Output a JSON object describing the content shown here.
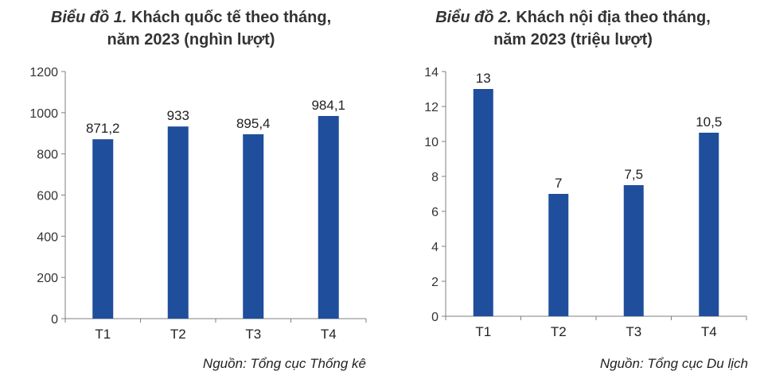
{
  "charts": [
    {
      "title_lead": "Biểu đồ 1.",
      "title_rest": " Khách quốc tế theo tháng,",
      "title_line2": "năm 2023 (nghìn lượt)",
      "source": "Nguồn: Tổng cục Thống kê"
    },
    {
      "title_lead": "Biểu đồ 2.",
      "title_rest": " Khách nội địa theo tháng,",
      "title_line2": "năm 2023 (triệu lượt)",
      "source": "Nguồn: Tổng cục Du lịch"
    }
  ],
  "colors": {
    "bar": "#1f4e9c",
    "axis": "#7f7f7f",
    "text": "#222222"
  },
  "chart_data": [
    {
      "type": "bar",
      "title": "Biểu đồ 1. Khách quốc tế theo tháng, năm 2023 (nghìn lượt)",
      "categories": [
        "T1",
        "T2",
        "T3",
        "T4"
      ],
      "values": [
        871.2,
        933,
        895.4,
        984.1
      ],
      "data_labels": [
        "871,2",
        "933",
        "895,4",
        "984,1"
      ],
      "ylim": [
        0,
        1200
      ],
      "yticks": [
        0,
        200,
        400,
        600,
        800,
        1000,
        1200
      ],
      "grid": false,
      "xlabel": "",
      "ylabel": ""
    },
    {
      "type": "bar",
      "title": "Biểu đồ 2. Khách nội địa theo tháng, năm 2023 (triệu lượt)",
      "categories": [
        "T1",
        "T2",
        "T3",
        "T4"
      ],
      "values": [
        13,
        7,
        7.5,
        10.5
      ],
      "data_labels": [
        "13",
        "7",
        "7,5",
        "10,5"
      ],
      "ylim": [
        0,
        14
      ],
      "yticks": [
        0,
        2,
        4,
        6,
        8,
        10,
        12,
        14
      ],
      "grid": false,
      "xlabel": "",
      "ylabel": ""
    }
  ]
}
